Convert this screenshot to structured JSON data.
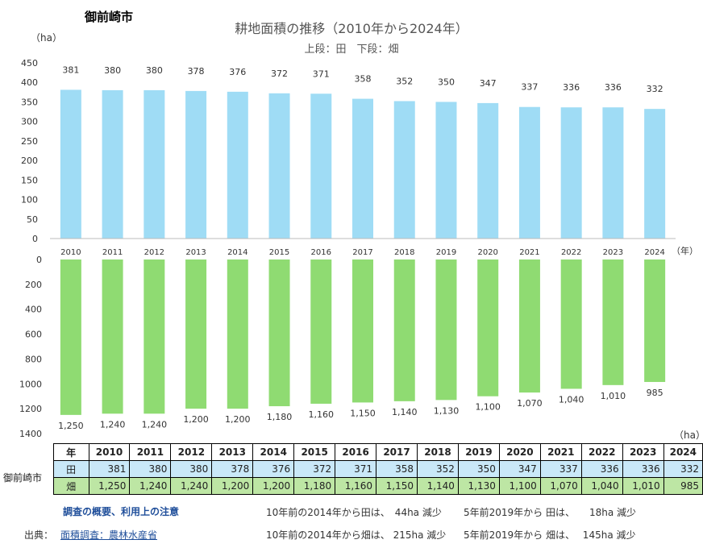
{
  "city": "御前崎市",
  "title": "耕地面積の推移（2010年から2024年）",
  "subtitle": "上段：田　下段：畑",
  "unit_top": "（ha）",
  "unit_bottom": "（ha）",
  "year_unit": "（年）",
  "label_ta": "田",
  "label_hata": "畑",
  "colors": {
    "ta": "#9fdcf5",
    "hata": "#8fdb72"
  },
  "chart_data": [
    {
      "type": "bar",
      "name": "田",
      "categories": [
        "2010",
        "2011",
        "2012",
        "2013",
        "2014",
        "2015",
        "2016",
        "2017",
        "2018",
        "2019",
        "2020",
        "2021",
        "2022",
        "2023",
        "2024"
      ],
      "values": [
        381,
        380,
        380,
        378,
        376,
        372,
        371,
        358,
        352,
        350,
        347,
        337,
        336,
        336,
        332
      ],
      "data_labels": [
        "381",
        "380",
        "380",
        "378",
        "376",
        "372",
        "371",
        "358",
        "352",
        "350",
        "347",
        "337",
        "336",
        "336",
        "332"
      ],
      "ylim": [
        0,
        450
      ],
      "yticks": [
        "0",
        "50",
        "100",
        "150",
        "200",
        "250",
        "300",
        "350",
        "400",
        "450"
      ],
      "grid": false
    },
    {
      "type": "bar",
      "name": "畑",
      "categories": [
        "2010",
        "2011",
        "2012",
        "2013",
        "2014",
        "2015",
        "2016",
        "2017",
        "2018",
        "2019",
        "2020",
        "2021",
        "2022",
        "2023",
        "2024"
      ],
      "values": [
        1250,
        1240,
        1240,
        1200,
        1200,
        1180,
        1160,
        1150,
        1140,
        1130,
        1100,
        1070,
        1040,
        1010,
        985
      ],
      "data_labels": [
        "1,250",
        "1,240",
        "1,240",
        "1,200",
        "1,200",
        "1,180",
        "1,160",
        "1,150",
        "1,140",
        "1,130",
        "1,100",
        "1,070",
        "1,040",
        "1,010",
        "985"
      ],
      "ylim": [
        0,
        1400
      ],
      "yticks": [
        "0",
        "200",
        "400",
        "600",
        "800",
        "1000",
        "1200",
        "1400"
      ],
      "inverted": true,
      "grid": false
    }
  ],
  "table": {
    "header_label": "年",
    "years": [
      "2010",
      "2011",
      "2012",
      "2013",
      "2014",
      "2015",
      "2016",
      "2017",
      "2018",
      "2019",
      "2020",
      "2021",
      "2022",
      "2023",
      "2024"
    ],
    "row_group": "御前崎市",
    "rows": [
      {
        "name": "田",
        "values": [
          "381",
          "380",
          "380",
          "378",
          "376",
          "372",
          "371",
          "358",
          "352",
          "350",
          "347",
          "337",
          "336",
          "336",
          "332"
        ]
      },
      {
        "name": "畑",
        "values": [
          "1,250",
          "1,240",
          "1,240",
          "1,200",
          "1,200",
          "1,180",
          "1,160",
          "1,150",
          "1,140",
          "1,130",
          "1,100",
          "1,070",
          "1,040",
          "1,010",
          "985"
        ]
      }
    ]
  },
  "footer": {
    "survey_link": "調査の概要、利用上の注意",
    "source_label": "出典：",
    "source_link": "面積調査：農林水産省",
    "note_1": "10年前の2014年から田は、　44ha 減少",
    "note_2": "5年前2019年から 田は、　　18ha 減少",
    "note_3": "10年前の2014年から畑は、 215ha 減少",
    "note_4": "5年前2019年から 畑は、　 145ha 減少"
  }
}
